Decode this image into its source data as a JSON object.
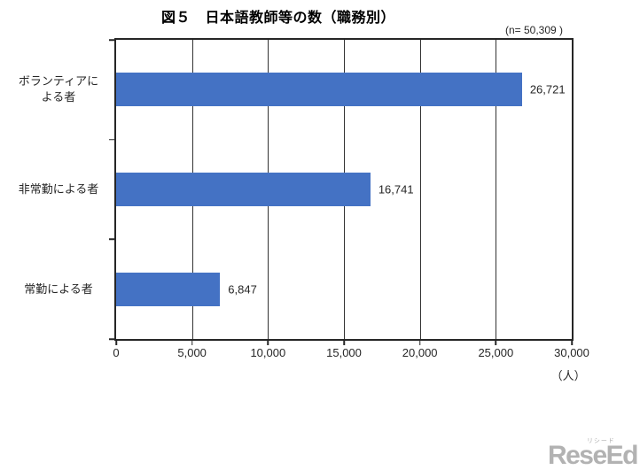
{
  "title": "図５　日本語教師等の数（職務別）",
  "n_label": "(n= 50,309 )",
  "chart_data": {
    "type": "bar",
    "orientation": "horizontal",
    "title": "図５　日本語教師等の数（職務別）",
    "n_total": 50309,
    "categories": [
      "ボランティアに\nよる者",
      "非常勤による者",
      "常勤による者"
    ],
    "values": [
      26721,
      16741,
      6847
    ],
    "value_labels": [
      "26,721",
      "16,741",
      "6,847"
    ],
    "xlim": [
      0,
      30000
    ],
    "xticks": [
      0,
      5000,
      10000,
      15000,
      20000,
      25000,
      30000
    ],
    "xtick_labels": [
      "0",
      "5,000",
      "10,000",
      "15,000",
      "20,000",
      "25,000",
      "30,000"
    ],
    "x_unit": "（人）",
    "bar_color": "#4472C4",
    "grid": true,
    "legend": "none"
  },
  "watermark": {
    "furigana": "リシード",
    "text": "ReseEd"
  }
}
